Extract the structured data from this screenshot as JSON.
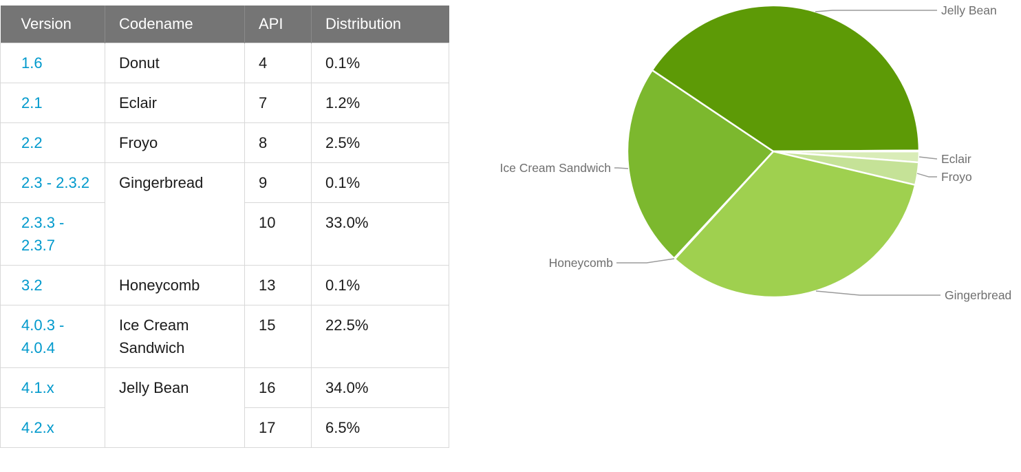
{
  "page": {
    "background": "#ffffff"
  },
  "table": {
    "header_bg": "#757575",
    "link_color": "#0099cc",
    "headers": [
      "Version",
      "Codename",
      "API",
      "Distribution"
    ],
    "rows": [
      {
        "version": "1.6",
        "codename": "Donut",
        "codename_rowspan": 1,
        "api": "4",
        "distribution": "0.1%"
      },
      {
        "version": "2.1",
        "codename": "Eclair",
        "codename_rowspan": 1,
        "api": "7",
        "distribution": "1.2%"
      },
      {
        "version": "2.2",
        "codename": "Froyo",
        "codename_rowspan": 1,
        "api": "8",
        "distribution": "2.5%"
      },
      {
        "version": "2.3 - 2.3.2",
        "codename": "Gingerbread",
        "codename_rowspan": 2,
        "api": "9",
        "distribution": "0.1%"
      },
      {
        "version": "2.3.3 - 2.3.7",
        "codename": null,
        "codename_rowspan": 0,
        "api": "10",
        "distribution": "33.0%"
      },
      {
        "version": "3.2",
        "codename": "Honeycomb",
        "codename_rowspan": 1,
        "api": "13",
        "distribution": "0.1%"
      },
      {
        "version": "4.0.3 - 4.0.4",
        "codename": "Ice Cream Sandwich",
        "codename_rowspan": 1,
        "api": "15",
        "distribution": "22.5%"
      },
      {
        "version": "4.1.x",
        "codename": "Jelly Bean",
        "codename_rowspan": 2,
        "api": "16",
        "distribution": "34.0%"
      },
      {
        "version": "4.2.x",
        "codename": null,
        "codename_rowspan": 0,
        "api": "17",
        "distribution": "6.5%"
      }
    ]
  },
  "chart_data": {
    "type": "pie",
    "title": "",
    "legend_position": "outside-callout-labels",
    "start_angle_deg": 0,
    "direction": "clockwise",
    "slices": [
      {
        "label": "Eclair",
        "value": 1.2,
        "color": "#d9ecb8"
      },
      {
        "label": "Froyo",
        "value": 2.5,
        "color": "#c5e297"
      },
      {
        "label": "Gingerbread",
        "value": 33.1,
        "color": "#9fd04f"
      },
      {
        "label": "Honeycomb",
        "value": 0.1,
        "color": "#8dc43d"
      },
      {
        "label": "Ice Cream Sandwich",
        "value": 22.5,
        "color": "#7cb82e"
      },
      {
        "label": "Jelly Bean",
        "value": 40.5,
        "color": "#5d9a06"
      },
      {
        "label": "Donut",
        "value": 0.1,
        "color": "#e9f4d3"
      }
    ],
    "labels_shown": [
      "Jelly Bean",
      "Eclair",
      "Froyo",
      "Gingerbread",
      "Honeycomb",
      "Ice Cream Sandwich"
    ]
  }
}
